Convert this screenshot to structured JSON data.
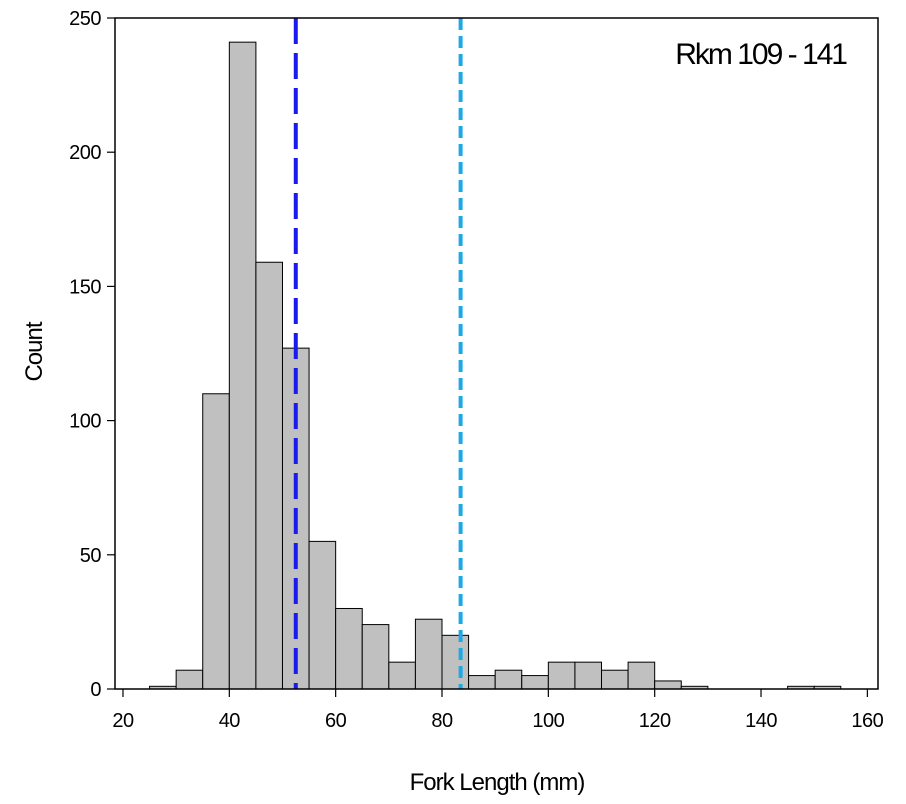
{
  "chart_data": {
    "type": "bar",
    "title": "",
    "annotation": "Rkm 109 - 141",
    "xlabel": "Fork Length (mm)",
    "ylabel": "Count",
    "xlim": [
      18.5,
      162
    ],
    "ylim": [
      0,
      250
    ],
    "xticks": [
      20,
      40,
      60,
      80,
      100,
      120,
      140,
      160
    ],
    "yticks": [
      0,
      50,
      100,
      150,
      200,
      250
    ],
    "bin_width": 5,
    "bins": [
      {
        "x0": 25,
        "x1": 30,
        "count": 1
      },
      {
        "x0": 30,
        "x1": 35,
        "count": 7
      },
      {
        "x0": 35,
        "x1": 40,
        "count": 110
      },
      {
        "x0": 40,
        "x1": 45,
        "count": 241
      },
      {
        "x0": 45,
        "x1": 50,
        "count": 159
      },
      {
        "x0": 50,
        "x1": 55,
        "count": 127
      },
      {
        "x0": 55,
        "x1": 60,
        "count": 55
      },
      {
        "x0": 60,
        "x1": 65,
        "count": 30
      },
      {
        "x0": 65,
        "x1": 70,
        "count": 24
      },
      {
        "x0": 70,
        "x1": 75,
        "count": 10
      },
      {
        "x0": 75,
        "x1": 80,
        "count": 26
      },
      {
        "x0": 80,
        "x1": 85,
        "count": 20
      },
      {
        "x0": 85,
        "x1": 90,
        "count": 5
      },
      {
        "x0": 90,
        "x1": 95,
        "count": 7
      },
      {
        "x0": 95,
        "x1": 100,
        "count": 5
      },
      {
        "x0": 100,
        "x1": 105,
        "count": 10
      },
      {
        "x0": 105,
        "x1": 110,
        "count": 10
      },
      {
        "x0": 110,
        "x1": 115,
        "count": 7
      },
      {
        "x0": 115,
        "x1": 120,
        "count": 10
      },
      {
        "x0": 120,
        "x1": 125,
        "count": 3
      },
      {
        "x0": 125,
        "x1": 130,
        "count": 1
      },
      {
        "x0": 145,
        "x1": 150,
        "count": 1
      },
      {
        "x0": 150,
        "x1": 155,
        "count": 1
      }
    ],
    "reference_lines": [
      {
        "x": 52.5,
        "color": "#1a1aee",
        "style": "long-dash"
      },
      {
        "x": 83.5,
        "color": "#1ea8e6",
        "style": "short-dash"
      }
    ],
    "bar_color": "#c0c0c0",
    "bar_edge_color": "#000000",
    "grid": false,
    "legend": "none"
  }
}
